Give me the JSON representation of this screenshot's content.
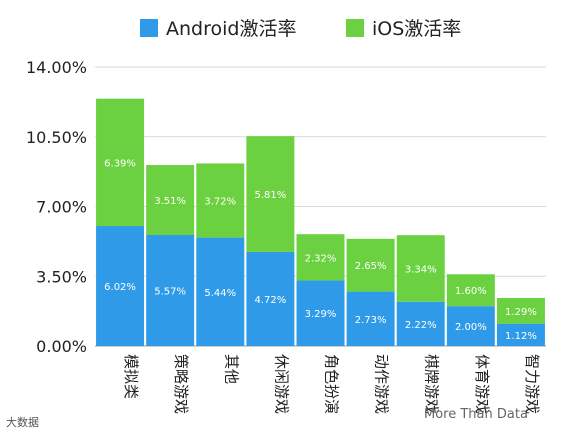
{
  "legend": {
    "android_label": "Android激活率",
    "ios_label": "iOS激活率"
  },
  "footer": {
    "left_text": "大数据",
    "right_text": "More Than Data"
  },
  "colors": {
    "android": "#2f9be8",
    "ios": "#6bd141",
    "axis_text": "#222222",
    "grid": "#d9d9d9",
    "value_label": "#ffffff"
  },
  "chart_data": {
    "type": "bar",
    "stacked": true,
    "categories": [
      "模拟类",
      "策略游戏",
      "其他",
      "休闲游戏",
      "角色扮演",
      "动作游戏",
      "棋牌游戏",
      "体育游戏",
      "智力游戏"
    ],
    "series": [
      {
        "name": "Android激活率",
        "values": [
          6.02,
          5.57,
          5.44,
          4.72,
          3.29,
          2.73,
          2.22,
          2.0,
          1.12
        ],
        "labels": [
          "6.02%",
          "5.57%",
          "5.44%",
          "4.72%",
          "3.29%",
          "2.73%",
          "2.22%",
          "2.00%",
          "1.12%"
        ]
      },
      {
        "name": "iOS激活率",
        "values": [
          6.39,
          3.51,
          3.72,
          5.81,
          2.32,
          2.65,
          3.34,
          1.6,
          1.29
        ],
        "labels": [
          "6.39%",
          "3.51%",
          "3.72%",
          "5.81%",
          "2.32%",
          "2.65%",
          "3.34%",
          "1.60%",
          "1.29%"
        ]
      }
    ],
    "yticks": [
      "0.00%",
      "3.50%",
      "7.00%",
      "10.50%",
      "14.00%"
    ],
    "ytick_values": [
      0,
      3.5,
      7,
      10.5,
      14
    ],
    "ylim": [
      0,
      14
    ],
    "title": "",
    "xlabel": "",
    "ylabel": "",
    "legend_position": "top",
    "grid": true
  }
}
